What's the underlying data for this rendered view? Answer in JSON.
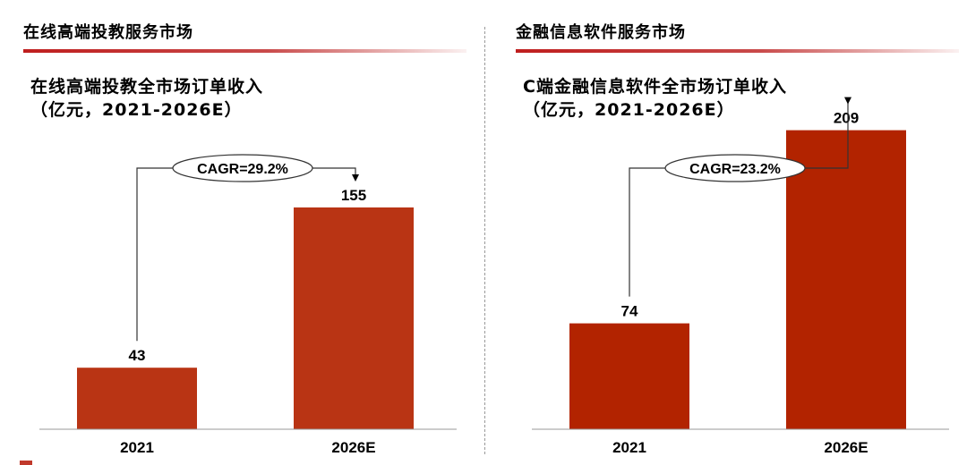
{
  "panels": [
    {
      "section_title": "在线高端投教服务市场",
      "chart_title": "在线高端投教全市场订单收入",
      "chart_unit": "（亿元，2021-2026E）",
      "cagr_label": "CAGR=29.2%",
      "bar_color": "#b93414",
      "chart_data": {
        "type": "bar",
        "categories": [
          "2021",
          "2026E"
        ],
        "values": [
          43,
          155
        ],
        "title": "在线高端投教全市场订单收入",
        "subtitle": "（亿元，2021-2026E）",
        "annotation": "CAGR=29.2%",
        "xlabel": "",
        "ylabel": "",
        "grid": false
      }
    },
    {
      "section_title": "金融信息软件服务市场",
      "chart_title": "C端金融信息软件全市场订单收入",
      "chart_unit": "（亿元，2021-2026E）",
      "cagr_label": "CAGR=23.2%",
      "bar_color": "#b22300",
      "chart_data": {
        "type": "bar",
        "categories": [
          "2021",
          "2026E"
        ],
        "values": [
          74,
          209
        ],
        "title": "C端金融信息软件全市场订单收入",
        "subtitle": "（亿元，2021-2026E）",
        "annotation": "CAGR=23.2%",
        "xlabel": "",
        "ylabel": "",
        "grid": false
      }
    }
  ],
  "colors": {
    "accent_red": "#bf1e1e",
    "axis": "#999999",
    "divider": "#999999"
  }
}
